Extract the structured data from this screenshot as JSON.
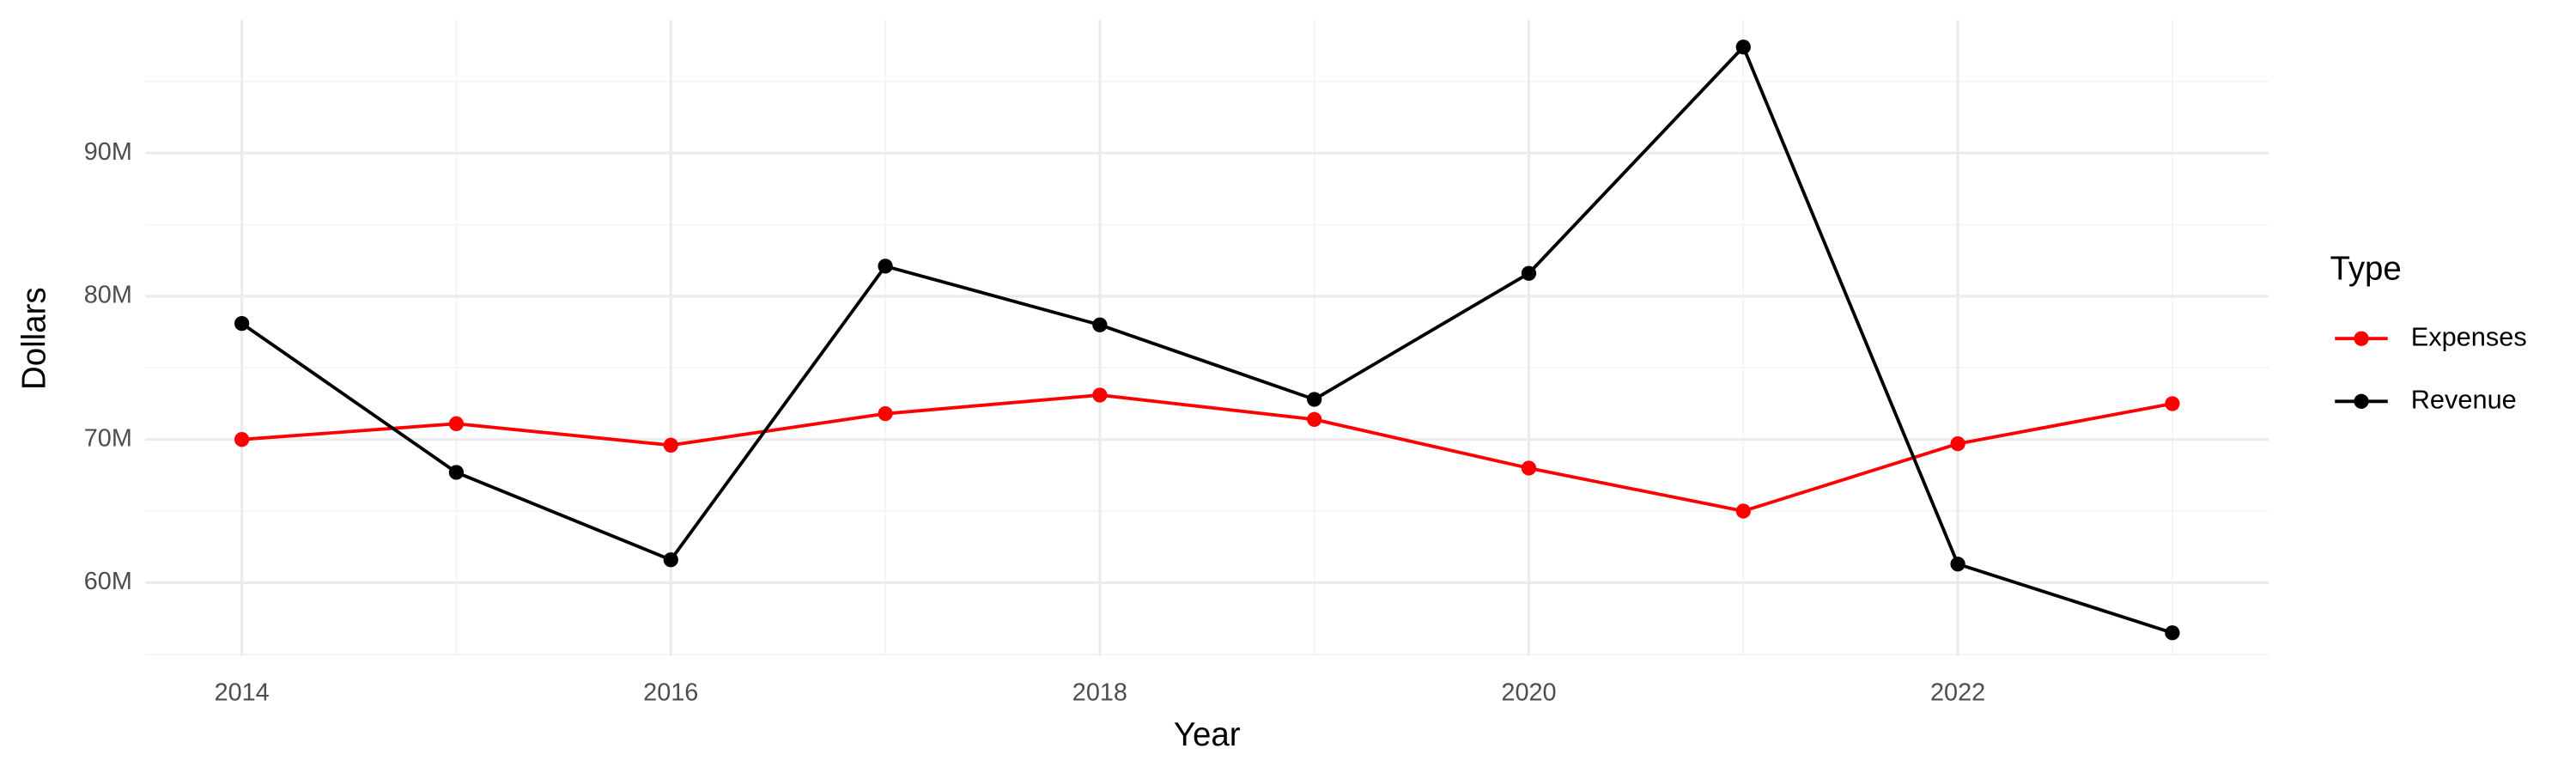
{
  "chart_data": {
    "type": "line",
    "x_label": "Year",
    "y_label": "Dollars",
    "x": [
      2014,
      2015,
      2016,
      2017,
      2018,
      2019,
      2020,
      2021,
      2022,
      2023
    ],
    "series": [
      {
        "name": "Expenses",
        "color": "#ff0000",
        "values": [
          70000000,
          71100000,
          69600000,
          71800000,
          73100000,
          71400000,
          68000000,
          65000000,
          69700000,
          72500000
        ]
      },
      {
        "name": "Revenue",
        "color": "#000000",
        "values": [
          78100000,
          67700000,
          61600000,
          82100000,
          78000000,
          72800000,
          81600000,
          97400000,
          61300000,
          56500000
        ]
      }
    ],
    "xlim": [
      2013.55,
      2023.45
    ],
    "xticks": [
      2014,
      2016,
      2018,
      2020,
      2022
    ],
    "ylim": [
      54900000,
      99300000
    ],
    "yticks": [
      {
        "value": 60000000,
        "label": "60M"
      },
      {
        "value": 70000000,
        "label": "70M"
      },
      {
        "value": 80000000,
        "label": "80M"
      },
      {
        "value": 90000000,
        "label": "90M"
      }
    ],
    "grid": true,
    "legend_title": "Type",
    "legend_position": "right"
  }
}
